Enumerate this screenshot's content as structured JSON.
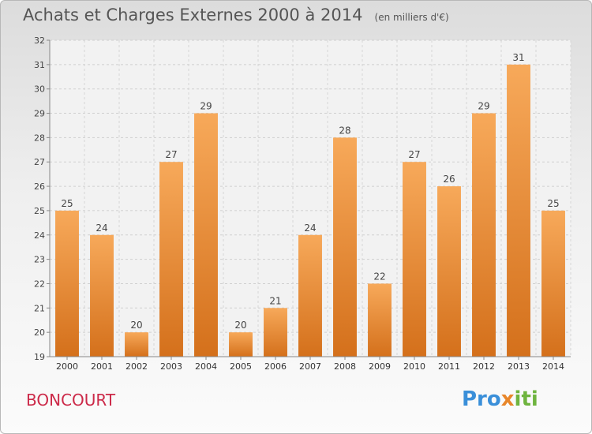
{
  "chart_data": {
    "type": "bar",
    "title": "Achats et Charges Externes 2000 à 2014",
    "unit_note": "(en milliers d'€)",
    "categories": [
      "2000",
      "2001",
      "2002",
      "2003",
      "2004",
      "2005",
      "2006",
      "2007",
      "2008",
      "2009",
      "2010",
      "2011",
      "2012",
      "2013",
      "2014"
    ],
    "values": [
      25,
      24,
      20,
      27,
      29,
      20,
      21,
      24,
      28,
      22,
      27,
      26,
      29,
      31,
      25
    ],
    "ylim": [
      19,
      32
    ],
    "yticks": [
      19,
      20,
      21,
      22,
      23,
      24,
      25,
      26,
      27,
      28,
      29,
      30,
      31,
      32
    ],
    "grid": true,
    "bar_color": "#f0963a"
  },
  "footer": {
    "town": "BONCOURT",
    "logo": [
      "Pro",
      "x",
      "iti"
    ]
  },
  "colors": {
    "title": "#555555",
    "town": "#cc2a49",
    "logo_blue": "#3a8fd9",
    "logo_orange": "#e8862a",
    "logo_green": "#6fb43f"
  }
}
